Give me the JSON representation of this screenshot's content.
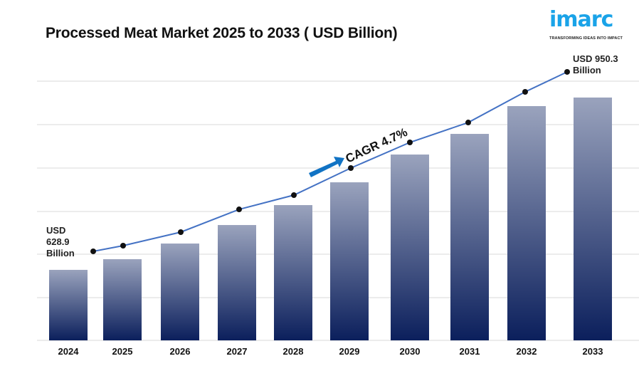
{
  "title": "Processed Meat Market 2025 to 2033 ( USD Billion)",
  "logo": {
    "text": "imarc",
    "tagline": "TRANSFORMING IDEAS INTO IMPACT",
    "color": "#1aa3e8"
  },
  "chart_data": {
    "type": "bar",
    "title": "Processed Meat Market 2025 to 2033 ( USD Billion)",
    "categories": [
      "2024",
      "2025",
      "2026",
      "2027",
      "2028",
      "2029",
      "2030",
      "2031",
      "2032",
      "2033"
    ],
    "values": [
      628.9,
      648.8,
      678.0,
      712.5,
      749.7,
      792.2,
      844.0,
      882.5,
      934.3,
      950.3
    ],
    "overlay": "trend line with markers",
    "annotations": {
      "start_label": [
        "USD",
        "628.9",
        "Billion"
      ],
      "end_label": [
        "USD 950.3",
        "Billion"
      ],
      "cagr": "CAGR 4.7%"
    },
    "grid": true,
    "y_tick_labels_shown": false,
    "colors": {
      "bar_top": "#9aa3bd",
      "bar_bottom": "#0b1f5c",
      "line": "#4472c4",
      "marker": "#111111",
      "arrow": "#1173c4"
    }
  }
}
